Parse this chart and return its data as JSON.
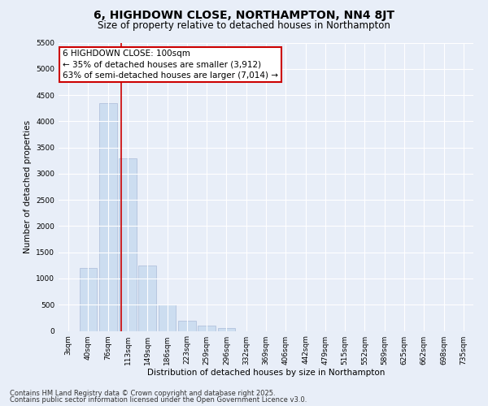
{
  "title": "6, HIGHDOWN CLOSE, NORTHAMPTON, NN4 8JT",
  "subtitle": "Size of property relative to detached houses in Northampton",
  "xlabel": "Distribution of detached houses by size in Northampton",
  "ylabel": "Number of detached properties",
  "categories": [
    "3sqm",
    "40sqm",
    "76sqm",
    "113sqm",
    "149sqm",
    "186sqm",
    "223sqm",
    "259sqm",
    "296sqm",
    "332sqm",
    "369sqm",
    "406sqm",
    "442sqm",
    "479sqm",
    "515sqm",
    "552sqm",
    "589sqm",
    "625sqm",
    "662sqm",
    "698sqm",
    "735sqm"
  ],
  "values": [
    0,
    1200,
    4350,
    3300,
    1250,
    500,
    200,
    100,
    50,
    0,
    0,
    0,
    0,
    0,
    0,
    0,
    0,
    0,
    0,
    0,
    0
  ],
  "bar_color": "#ccddf0",
  "bar_edge_color": "#aabbd8",
  "vline_x_index": 2.65,
  "vline_color": "#cc0000",
  "annotation_text": "6 HIGHDOWN CLOSE: 100sqm\n← 35% of detached houses are smaller (3,912)\n63% of semi-detached houses are larger (7,014) →",
  "annotation_box_color": "#ffffff",
  "annotation_box_edge_color": "#cc0000",
  "ylim": [
    0,
    5500
  ],
  "yticks": [
    0,
    500,
    1000,
    1500,
    2000,
    2500,
    3000,
    3500,
    4000,
    4500,
    5000,
    5500
  ],
  "footer_line1": "Contains HM Land Registry data © Crown copyright and database right 2025.",
  "footer_line2": "Contains public sector information licensed under the Open Government Licence v3.0.",
  "bg_color": "#e8eef8",
  "plot_bg_color": "#e8eef8",
  "title_fontsize": 10,
  "subtitle_fontsize": 8.5,
  "axis_label_fontsize": 7.5,
  "tick_fontsize": 6.5,
  "footer_fontsize": 6.0,
  "annotation_fontsize": 7.5
}
